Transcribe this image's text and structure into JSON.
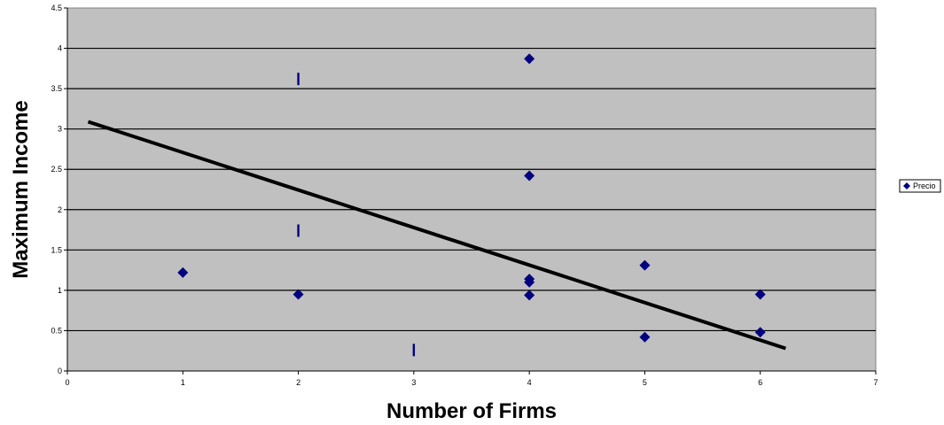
{
  "chart_data": {
    "type": "scatter",
    "title": "",
    "xlabel": "Number of Firms",
    "ylabel": "Maximum Income",
    "xlim": [
      0,
      7
    ],
    "ylim": [
      0,
      4.5
    ],
    "x_ticks": [
      "0",
      "1",
      "2",
      "3",
      "4",
      "5",
      "6",
      "7"
    ],
    "y_ticks": [
      "0",
      "0.5",
      "1",
      "1.5",
      "2",
      "2.5",
      "3",
      "3.5",
      "4",
      "4.5"
    ],
    "grid": "horizontal",
    "plot_background": "#c0c0c0",
    "legend": {
      "placement": "right",
      "entries": [
        "Precio"
      ]
    },
    "series": [
      {
        "name": "Precio",
        "marker": "diamond",
        "color": "#000080",
        "points": [
          {
            "x": 1,
            "y": 1.22
          },
          {
            "x": 2,
            "y": 0.95
          },
          {
            "x": 4,
            "y": 3.87
          },
          {
            "x": 4,
            "y": 2.42
          },
          {
            "x": 4,
            "y": 1.14
          },
          {
            "x": 4,
            "y": 1.1
          },
          {
            "x": 4,
            "y": 0.94
          },
          {
            "x": 5,
            "y": 1.31
          },
          {
            "x": 5,
            "y": 0.42
          },
          {
            "x": 6,
            "y": 0.95
          },
          {
            "x": 6,
            "y": 0.48
          }
        ]
      },
      {
        "name": "",
        "marker": "dash",
        "color": "#000080",
        "points": [
          {
            "x": 2,
            "y": 3.62
          },
          {
            "x": 2,
            "y": 1.74
          },
          {
            "x": 3,
            "y": 0.26
          }
        ]
      }
    ],
    "trendline": {
      "color": "#000000",
      "from": {
        "x": 0.18,
        "y": 3.09
      },
      "to": {
        "x": 6.22,
        "y": 0.28
      }
    }
  }
}
